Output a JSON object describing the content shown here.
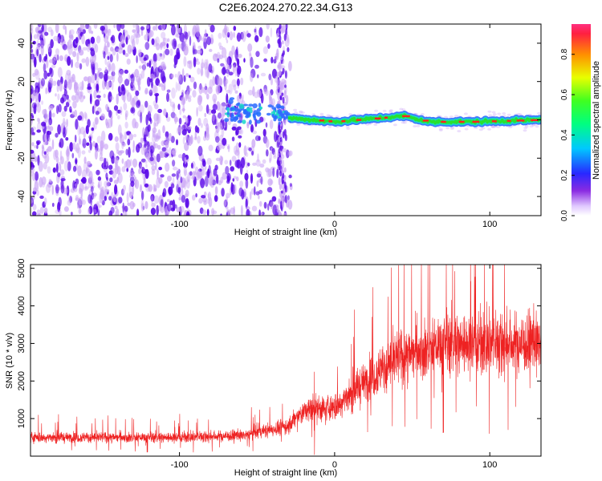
{
  "title": "C2E6.2024.270.22.34.G13",
  "colors": {
    "snr_line": "#ee2222",
    "scatter_light": "#c9a3f5",
    "scatter_dark": "#5a08e8",
    "track": [
      "#2b6bff",
      "#18d8c8",
      "#28e030",
      "#ff2020"
    ]
  },
  "chart_data": [
    {
      "type": "heatmap",
      "title": "C2E6.2024.270.22.34.G13",
      "xlabel": "Height of straight line (km)",
      "ylabel": "Frequency (Hz)",
      "xlim": [
        -196,
        133
      ],
      "ylim": [
        -50,
        50
      ],
      "x_ticks": [
        -100,
        0,
        100
      ],
      "y_ticks": [
        -40,
        -20,
        0,
        20,
        40
      ],
      "colorbar": {
        "label": "Normalized spectral amplitude",
        "range": [
          0,
          0.95
        ],
        "ticks": [
          0.0,
          0.2,
          0.4,
          0.6,
          0.8
        ]
      },
      "description_points": [
        {
          "x": -196,
          "freq": 0
        },
        {
          "x": -40,
          "freq": 5
        },
        {
          "x": -30,
          "freq": 1
        },
        {
          "x": 0,
          "freq": -1
        },
        {
          "x": 30,
          "freq": 1
        },
        {
          "x": 45,
          "freq": 2
        },
        {
          "x": 60,
          "freq": -1
        },
        {
          "x": 90,
          "freq": -1
        },
        {
          "x": 133,
          "freq": 0
        }
      ]
    },
    {
      "type": "line",
      "xlabel": "Height of straight line (km)",
      "ylabel": "SNR (10 * v/v)",
      "xlim": [
        -196,
        133
      ],
      "ylim": [
        0,
        5100
      ],
      "x_ticks": [
        -100,
        0,
        100
      ],
      "y_ticks": [
        1000,
        2000,
        3000,
        4000,
        5000
      ],
      "envelope": [
        {
          "x": -196,
          "mean": 500
        },
        {
          "x": -100,
          "mean": 500
        },
        {
          "x": -60,
          "mean": 550
        },
        {
          "x": -30,
          "mean": 800
        },
        {
          "x": -20,
          "mean": 1200
        },
        {
          "x": 0,
          "mean": 1300
        },
        {
          "x": 20,
          "mean": 2000
        },
        {
          "x": 40,
          "mean": 2600
        },
        {
          "x": 70,
          "mean": 3000
        },
        {
          "x": 100,
          "mean": 3000
        },
        {
          "x": 133,
          "mean": 3000
        }
      ]
    }
  ]
}
